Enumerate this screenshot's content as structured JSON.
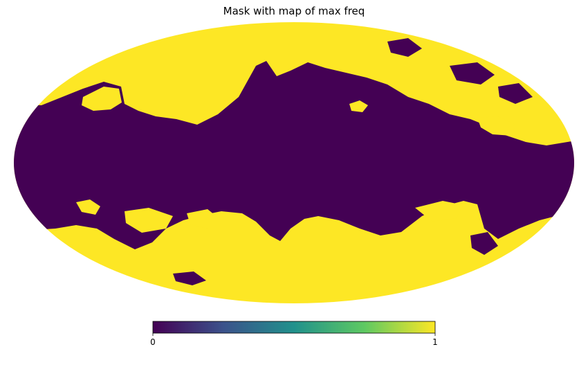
{
  "chart_data": {
    "type": "heatmap",
    "projection": "mollweide",
    "title": "Mask with map of max freq",
    "xlabel": "",
    "ylabel": "",
    "value_range": [
      0,
      1
    ],
    "colormap": "viridis",
    "colormap_stops": [
      "#440154",
      "#3b528b",
      "#21918c",
      "#5ec962",
      "#fde725"
    ],
    "mask_color_masked": "#440154",
    "mask_color_unmasked": "#fde725",
    "colorbar": {
      "orientation": "horizontal",
      "placement": "bottom-center",
      "ticks": [
        {
          "value": 0,
          "label": "0"
        },
        {
          "value": 1,
          "label": "1"
        }
      ]
    },
    "regions": [
      {
        "name": "galactic-plane-band",
        "value": 0
      },
      {
        "name": "high-latitude-sky",
        "value": 1
      }
    ]
  }
}
